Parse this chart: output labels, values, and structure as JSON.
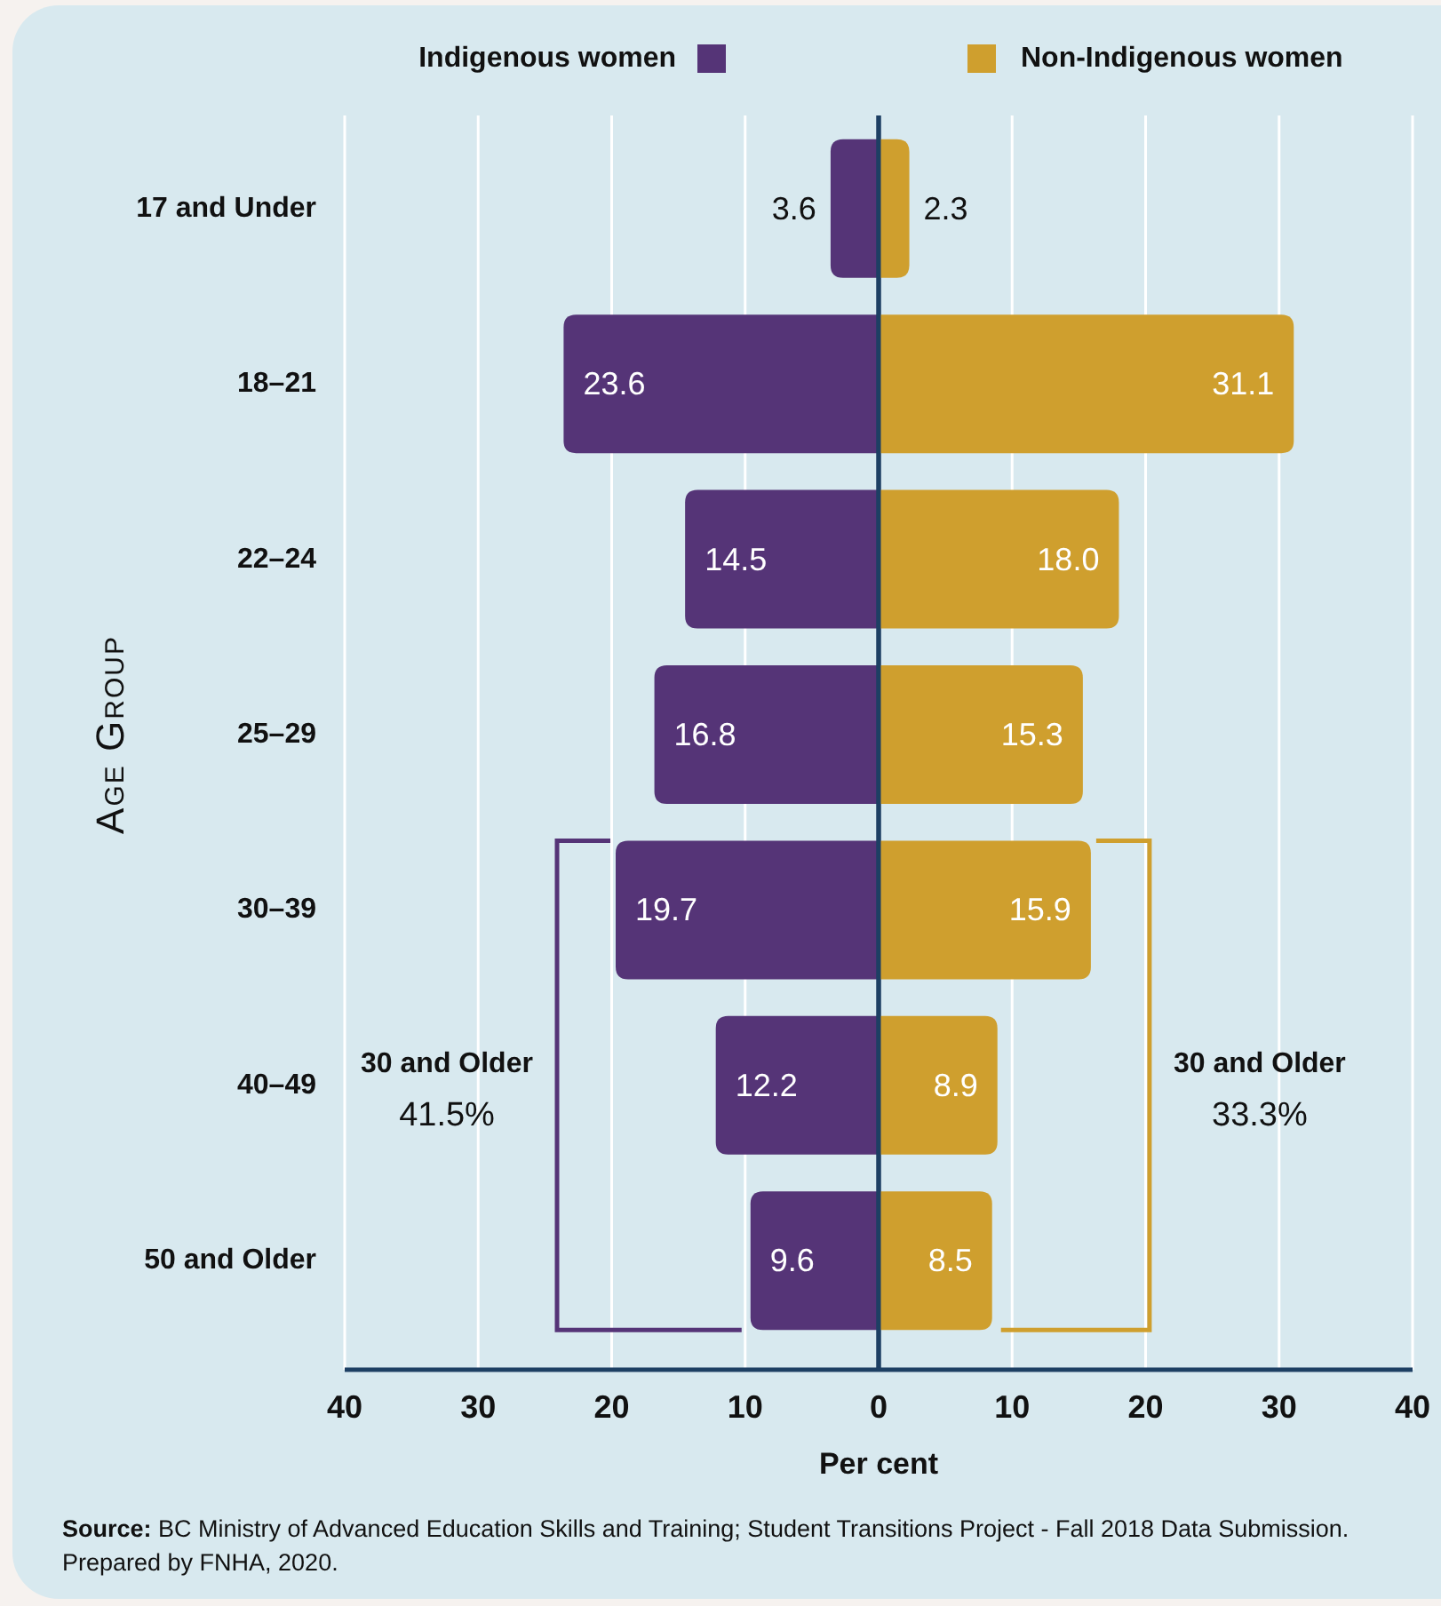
{
  "chart_data": [
    {
      "type": "bar",
      "orientation": "horizontal",
      "categories": [
        "17 and Under",
        "18–21",
        "22–24",
        "25–29",
        "30–39",
        "40–49",
        "50 and Older"
      ],
      "series": [
        {
          "name": "Indigenous women",
          "color": "#553477",
          "values": [
            3.6,
            23.6,
            14.5,
            16.8,
            19.7,
            12.2,
            9.6
          ],
          "value_labels": [
            "3.6",
            "23.6",
            "14.5",
            "16.8",
            "19.7",
            "12.2",
            "9.6"
          ]
        }
      ],
      "xlim": [
        40,
        0
      ],
      "xticks": [
        40,
        30,
        20,
        10,
        0
      ],
      "xlabel": "Per cent",
      "ylabel": "Age Group",
      "grid": "x",
      "legend": "top",
      "annotations": [
        "30 and Older",
        "41.5%",
        "Source: BC Ministry of Advanced Education Skills and Training; Student Transitions Project - Fall 2018 Data Submission. Prepared by FNHA, 2020."
      ]
    },
    {
      "type": "bar",
      "orientation": "horizontal",
      "tick_labels": "x",
      "categories": [
        "17 and Under",
        "18–21",
        "22–24",
        "25–29",
        "30–39",
        "40–49",
        "50 and Older"
      ],
      "series": [
        {
          "name": "Non-Indigenous women",
          "color": "#cf9f2e",
          "values": [
            2.3,
            31.1,
            18.0,
            15.3,
            15.9,
            8.9,
            8.5
          ],
          "value_labels": [
            "2.3",
            "31.1",
            "18.0",
            "15.3",
            "15.9",
            "8.9",
            "8.5"
          ]
        }
      ],
      "xlim": [
        0,
        40
      ],
      "xticks": [
        10,
        20,
        30,
        40
      ],
      "grid": "x",
      "legend": "top",
      "annotations": [
        "30 and Older",
        "33.3%"
      ]
    }
  ]
}
